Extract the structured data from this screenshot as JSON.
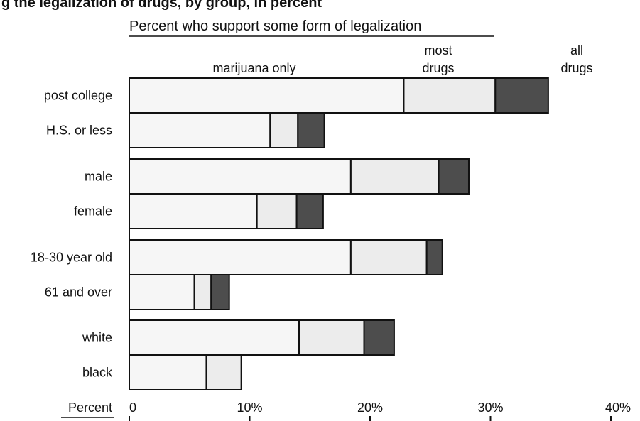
{
  "chart_data": {
    "type": "bar",
    "stacked": true,
    "orientation": "horizontal",
    "title": "g the legalization of drugs, by group, in percent",
    "subtitle": "Percent who support some form of legalization",
    "xlabel": "Percent",
    "xlim": [
      0,
      40
    ],
    "x_ticks": [
      "0",
      "10%",
      "20%",
      "30%",
      "40%"
    ],
    "x_tick_values": [
      0,
      10,
      20,
      30,
      40
    ],
    "grid": false,
    "segment_headers": [
      "marijuana only",
      "most drugs",
      "all drugs"
    ],
    "categories": [
      "post college",
      "H.S. or less",
      "male",
      "female",
      "18-30 year old",
      "61 and over",
      "white",
      "black"
    ],
    "groups": [
      [
        0,
        1
      ],
      [
        2,
        3
      ],
      [
        4,
        5
      ],
      [
        6,
        7
      ]
    ],
    "series": [
      {
        "name": "marijuana only",
        "values": [
          22.8,
          11.7,
          18.4,
          10.6,
          18.4,
          5.4,
          14.1,
          6.4
        ]
      },
      {
        "name": "most drugs",
        "values": [
          7.6,
          2.3,
          7.3,
          3.3,
          6.3,
          1.4,
          5.4,
          2.9
        ]
      },
      {
        "name": "all drugs",
        "values": [
          4.4,
          2.2,
          2.5,
          2.2,
          1.3,
          1.5,
          2.5,
          0
        ]
      }
    ],
    "colors": {
      "marijuana only": "#f6f6f6",
      "most drugs": "#ececec",
      "all drugs": "#4d4d4d",
      "outline": "#111111"
    }
  }
}
